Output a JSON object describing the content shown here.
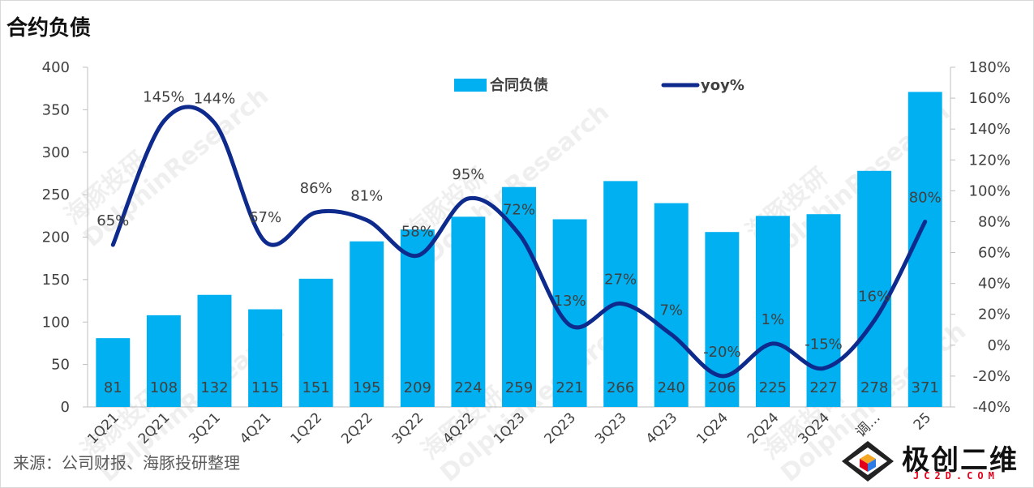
{
  "title": "合约负债",
  "source": "来源：公司财报、海豚投研整理",
  "watermark": {
    "text_cn": "海豚投研",
    "text_en": "DolphinResearch"
  },
  "logo": {
    "text": "极创二维",
    "subtext": "JC2D.COM"
  },
  "colors": {
    "bar": "#00b0f0",
    "line": "#0d2a8c"
  },
  "chart_data": {
    "type": "bar",
    "categories": [
      "1Q21",
      "2Q21",
      "3Q21",
      "4Q21",
      "1Q22",
      "2Q22",
      "3Q22",
      "4Q22",
      "1Q23",
      "2Q23",
      "3Q23",
      "4Q23",
      "1Q24",
      "2Q24",
      "3Q24",
      "调…",
      "25"
    ],
    "series": [
      {
        "name": "合同负债",
        "type": "bar",
        "axis": "left",
        "values": [
          81,
          108,
          132,
          115,
          151,
          195,
          209,
          224,
          259,
          221,
          266,
          240,
          206,
          225,
          227,
          278,
          371
        ],
        "labels": [
          "81",
          "108",
          "132",
          "115",
          "151",
          "195",
          "209",
          "224",
          "259",
          "221",
          "266",
          "240",
          "206",
          "225",
          "227",
          "278",
          "371"
        ]
      },
      {
        "name": "yoy%",
        "type": "line",
        "axis": "right",
        "values": [
          65,
          145,
          144,
          67,
          86,
          81,
          58,
          95,
          72,
          13,
          27,
          7,
          -20,
          1,
          -15,
          16,
          80
        ],
        "labels": [
          "65%",
          "145%",
          "144%",
          "67%",
          "86%",
          "81%",
          "58%",
          "95%",
          "72%",
          "13%",
          "27%",
          "7%",
          "-20%",
          "1%",
          "-15%",
          "16%",
          "80%"
        ]
      }
    ],
    "ylim": [
      0,
      400
    ],
    "y_ticks": [
      "0",
      "50",
      "100",
      "150",
      "200",
      "250",
      "300",
      "350",
      "400"
    ],
    "y2lim": [
      -40,
      180
    ],
    "y2_ticks": [
      "-40%",
      "-20%",
      "0%",
      "20%",
      "40%",
      "60%",
      "80%",
      "100%",
      "120%",
      "140%",
      "160%",
      "180%"
    ],
    "legend": [
      "合同负债",
      "yoy%"
    ],
    "legend_position": "top-center",
    "grid": false
  }
}
